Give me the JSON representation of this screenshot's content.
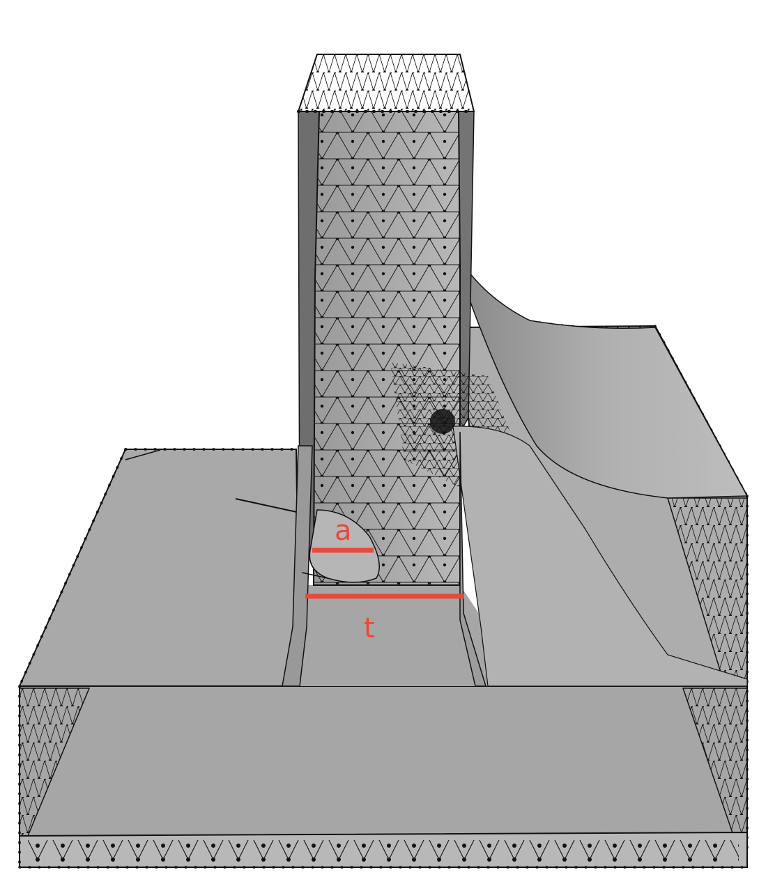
{
  "figure": {
    "colors": {
      "background": "#ffffff",
      "surface": "#a8a8a8",
      "surface_light": "#b4b4b4",
      "surface_dark": "#6e6e6e",
      "mesh_line": "#1a1a1a",
      "node": "#111111",
      "dimension": "#e8493a"
    },
    "annotations": {
      "crack_depth_label": "a",
      "thickness_label": "t"
    }
  }
}
